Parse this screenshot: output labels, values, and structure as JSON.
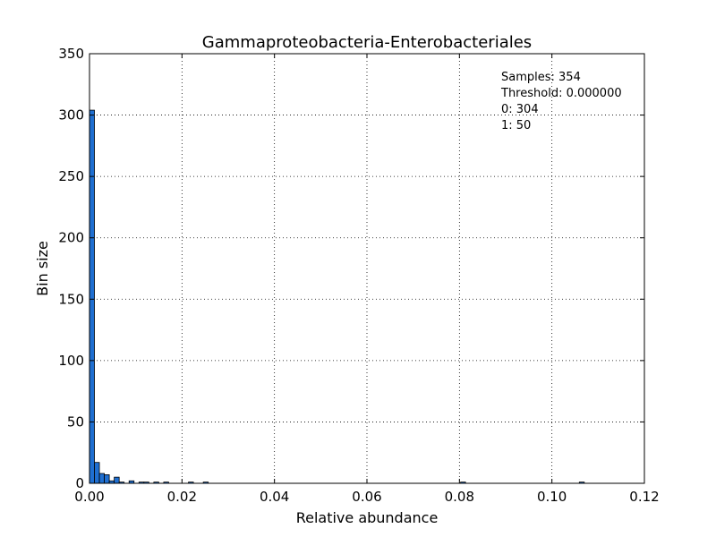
{
  "chart_data": {
    "type": "bar",
    "title": "Gammaproteobacteria-Enterobacteriales",
    "xlabel": "Relative abundance",
    "ylabel": "Bin size",
    "xlim": [
      0.0,
      0.12
    ],
    "ylim": [
      0,
      350
    ],
    "x_ticks": [
      0.0,
      0.02,
      0.04,
      0.06,
      0.08,
      0.1,
      0.12
    ],
    "x_tick_labels": [
      "0.00",
      "0.02",
      "0.04",
      "0.06",
      "0.08",
      "0.10",
      "0.12"
    ],
    "y_ticks": [
      0,
      50,
      100,
      150,
      200,
      250,
      300,
      350
    ],
    "y_tick_labels": [
      "0",
      "50",
      "100",
      "150",
      "200",
      "250",
      "300",
      "350"
    ],
    "grid": true,
    "bar_color": "#1f6fd1",
    "bin_width": 0.00107,
    "bins": [
      {
        "x": 0.0,
        "value": 304
      },
      {
        "x": 0.00107,
        "value": 17
      },
      {
        "x": 0.00214,
        "value": 8
      },
      {
        "x": 0.00321,
        "value": 7
      },
      {
        "x": 0.00428,
        "value": 2
      },
      {
        "x": 0.00535,
        "value": 5
      },
      {
        "x": 0.00642,
        "value": 1
      },
      {
        "x": 0.00856,
        "value": 2
      },
      {
        "x": 0.0107,
        "value": 1
      },
      {
        "x": 0.01177,
        "value": 1
      },
      {
        "x": 0.01391,
        "value": 1
      },
      {
        "x": 0.01605,
        "value": 1
      },
      {
        "x": 0.0214,
        "value": 1
      },
      {
        "x": 0.02461,
        "value": 1
      },
      {
        "x": 0.08025,
        "value": 1
      },
      {
        "x": 0.10593,
        "value": 1
      }
    ],
    "annotation": {
      "lines": [
        "Samples: 354",
        "Threshold: 0.000000",
        "0: 304",
        "1: 50"
      ],
      "placement": "top-right"
    }
  }
}
